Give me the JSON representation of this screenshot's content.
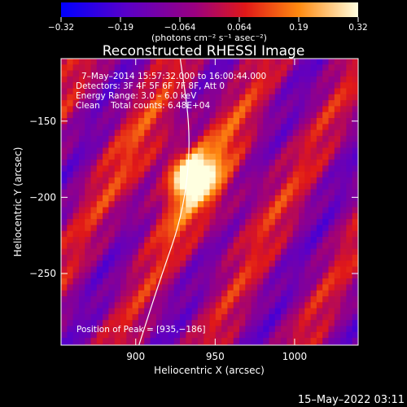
{
  "chart_data": {
    "type": "heatmap",
    "title": "Reconstructed RHESSI Image",
    "xlabel": "Heliocentric X (arcsec)",
    "ylabel": "Heliocentric Y (arcsec)",
    "xlim": [
      853,
      1040
    ],
    "ylim": [
      -297,
      -109
    ],
    "x_ticks": [
      900,
      950,
      1000
    ],
    "y_ticks": [
      -150,
      -200,
      -250
    ],
    "colorbar": {
      "label": "(photons cm⁻² s⁻¹ asec⁻²)",
      "range": [
        -0.32,
        0.32
      ],
      "ticks": [
        "−0.32",
        "−0.19",
        "−0.064",
        "0.064",
        "0.19",
        "0.32"
      ]
    },
    "annotations": [
      "7–May–2014 15:57:32.000 to 16:00:44.000",
      "Detectors: 3F 4F 5F 6F 7F 8F, Att 0",
      "Energy Range: 3.0 – 6.0 keV",
      "Clean    Total counts: 6.48E+04"
    ],
    "peak_label": "Position of Peak = [935,−186]",
    "peak": {
      "x": 935,
      "y": -186,
      "value": 0.32
    },
    "limb": [
      [
        928,
        -109
      ],
      [
        935,
        -160
      ],
      [
        930,
        -210
      ],
      [
        915,
        -255
      ],
      [
        902,
        -297
      ]
    ]
  },
  "footer": {
    "date": "15–May–2022 03:11"
  }
}
